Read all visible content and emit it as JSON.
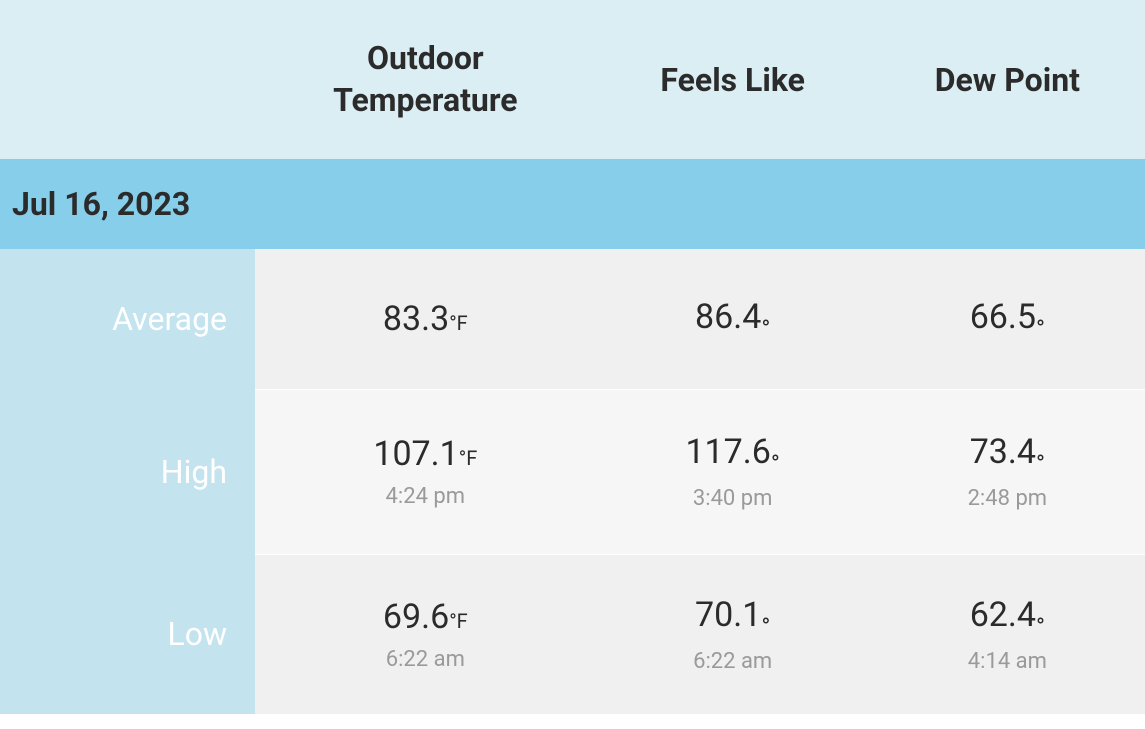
{
  "colors": {
    "header_bg": "#dbeef3",
    "date_bg": "#87ceeb",
    "label_col_bg": "#c3e3ee",
    "row_bg_a": "#f0f0f0",
    "row_bg_b": "#f6f6f6",
    "text": "#2b2b2b",
    "label_text": "#ffffff",
    "time_text": "#9a9a9a"
  },
  "header": {
    "outdoor_temp_line1": "Outdoor",
    "outdoor_temp_line2": "Temperature",
    "feels_like": "Feels Like",
    "dew_point": "Dew Point"
  },
  "date": "Jul 16, 2023",
  "rows": {
    "average": {
      "label": "Average",
      "outdoor": {
        "value": "83.3",
        "unit": "°F"
      },
      "feels": {
        "value": "86.4",
        "unit": "°"
      },
      "dew": {
        "value": "66.5",
        "unit": "°"
      }
    },
    "high": {
      "label": "High",
      "outdoor": {
        "value": "107.1",
        "unit": "°F",
        "time": "4:24 pm"
      },
      "feels": {
        "value": "117.6",
        "unit": "°",
        "time": "3:40 pm"
      },
      "dew": {
        "value": "73.4",
        "unit": "°",
        "time": "2:48 pm"
      }
    },
    "low": {
      "label": "Low",
      "outdoor": {
        "value": "69.6",
        "unit": "°F",
        "time": "6:22 am"
      },
      "feels": {
        "value": "70.1",
        "unit": "°",
        "time": "6:22 am"
      },
      "dew": {
        "value": "62.4",
        "unit": "°",
        "time": "4:14 am"
      }
    }
  }
}
